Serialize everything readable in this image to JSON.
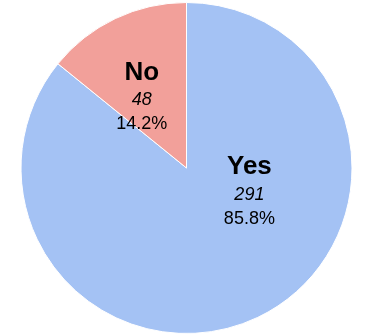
{
  "chart_data": {
    "type": "pie",
    "categories": [
      "Yes",
      "No"
    ],
    "values": [
      291,
      48
    ],
    "percent_values": [
      85.8,
      14.2
    ],
    "percent_labels": [
      "85.8%",
      "14.2%"
    ],
    "colors": [
      "#a4c2f4",
      "#f2a09a"
    ],
    "data_labels": true,
    "legend": false
  }
}
